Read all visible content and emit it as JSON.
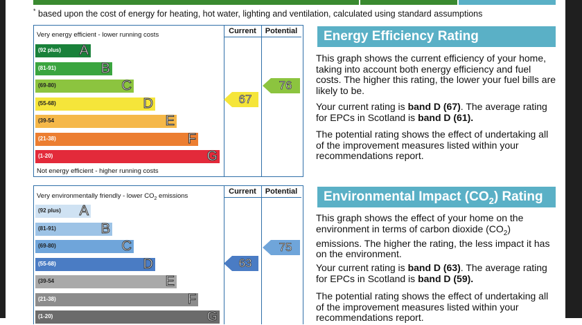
{
  "footnote": "based upon the cost of energy for heating, hot water, lighting and ventilation, calculated using standard assumptions",
  "energy": {
    "col_current": "Current",
    "col_potential": "Potential",
    "top_caption": "Very energy efficient - lower running costs",
    "bottom_caption": "Not energy efficient - higher running costs",
    "bands": [
      {
        "range": "(92 plus)",
        "letter": "A",
        "color": "#19813a"
      },
      {
        "range": "(81-91)",
        "letter": "B",
        "color": "#3aa53f"
      },
      {
        "range": "(69-80)",
        "letter": "C",
        "color": "#8cc43f"
      },
      {
        "range": "(55-68)",
        "letter": "D",
        "color": "#f5e53a"
      },
      {
        "range": "(39-54",
        "letter": "E",
        "color": "#f5b849"
      },
      {
        "range": "(21-38)",
        "letter": "F",
        "color": "#ec7e31"
      },
      {
        "range": "(1-20)",
        "letter": "G",
        "color": "#e32a3a"
      }
    ],
    "current": {
      "value": "67",
      "color": "#f5e53a"
    },
    "potential": {
      "value": "76",
      "color": "#8cc43f"
    },
    "title": "Energy Efficiency Rating",
    "p1": "This graph shows the current efficiency of your home, taking into account both energy efficiency and fuel costs. The higher this rating, the lower your fuel bills are likely to be.",
    "p2_a": "Your current rating is ",
    "p2_b": "band D (67)",
    "p2_c": ". The average rating for EPCs in Scotland is ",
    "p2_d": "band D (61).",
    "p3": "The potential rating shows the effect of undertaking all of the improvement measures listed within your recommendations report."
  },
  "environment": {
    "col_current": "Current",
    "col_potential": "Potential",
    "top_caption_a": "Very environmentally friendly - lower CO",
    "top_caption_sub": "2",
    "top_caption_b": " emissions",
    "bands": [
      {
        "range": "(92 plus)",
        "letter": "A",
        "color": "#cfe2f3"
      },
      {
        "range": "(81-91)",
        "letter": "B",
        "color": "#9dc3e6"
      },
      {
        "range": "(69-80)",
        "letter": "C",
        "color": "#6fa5da"
      },
      {
        "range": "(55-68)",
        "letter": "D",
        "color": "#4a7cc4"
      },
      {
        "range": "(39-54",
        "letter": "E",
        "color": "#a9a9a9"
      },
      {
        "range": "(21-38)",
        "letter": "F",
        "color": "#8c8c8c"
      },
      {
        "range": "(1-20)",
        "letter": "G",
        "color": "#6b6b6b"
      }
    ],
    "current": {
      "value": "63",
      "color": "#4a7cc4"
    },
    "potential": {
      "value": "75",
      "color": "#6fa5da"
    },
    "title_a": "Environmental Impact (CO",
    "title_sub": "2",
    "title_b": ") Rating",
    "p1_a": "This graph shows the effect of your home on the environment in terms of carbon dioxide (CO",
    "p1_sub": "2",
    "p1_b": ") emissions. The higher the rating, the less impact it has on the environment.",
    "p2_a": "Your current rating is ",
    "p2_b": "band D (63)",
    "p2_c": ". The average rating for EPCs in Scotland is ",
    "p2_d": "band D (59).",
    "p3": "The potential rating shows the effect of undertaking all of the improvement measures listed within your recommendations report."
  },
  "colors": {
    "top_bar_green": "#3a8a30",
    "panel_title_bg": "#5ab0c6",
    "chart_border": "#2f6fa8"
  }
}
